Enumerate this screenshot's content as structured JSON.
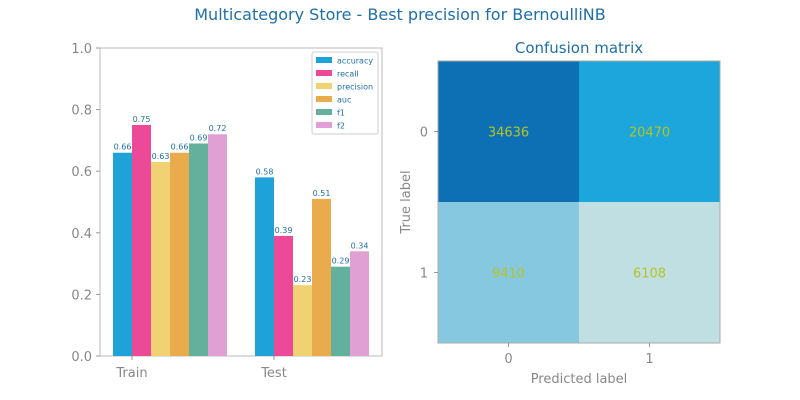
{
  "suptitle": "Multicategory Store - Best precision for BernoulliNB",
  "chart_data": [
    {
      "type": "bar",
      "categories": [
        "Train",
        "Test"
      ],
      "ylim": [
        0,
        1
      ],
      "yticks": [
        "0.0",
        "0.2",
        "0.4",
        "0.6",
        "0.8",
        "1.0"
      ],
      "legend_position": "top-right",
      "series": [
        {
          "name": "accuracy",
          "color": "#1ea2d8",
          "values": [
            0.66,
            0.58
          ],
          "labels": [
            "0.66",
            "0.58"
          ]
        },
        {
          "name": "recall",
          "color": "#ec4a98",
          "values": [
            0.75,
            0.39
          ],
          "labels": [
            "0.75",
            "0.39"
          ]
        },
        {
          "name": "precision",
          "color": "#f0d273",
          "values": [
            0.63,
            0.23
          ],
          "labels": [
            "0.63",
            "0.23"
          ]
        },
        {
          "name": "auc",
          "color": "#e9ab4c",
          "values": [
            0.66,
            0.51
          ],
          "labels": [
            "0.66",
            "0.51"
          ]
        },
        {
          "name": "f1",
          "color": "#63b09c",
          "values": [
            0.69,
            0.29
          ],
          "labels": [
            "0.69",
            "0.29"
          ]
        },
        {
          "name": "f2",
          "color": "#e0a0d4",
          "values": [
            0.72,
            0.34
          ],
          "labels": [
            "0.72",
            "0.34"
          ]
        }
      ]
    },
    {
      "type": "heatmap",
      "title": "Confusion matrix",
      "xlabel": "Predicted label",
      "ylabel": "True label",
      "x_ticks": [
        "0",
        "1"
      ],
      "y_ticks": [
        "0",
        "1"
      ],
      "matrix": [
        [
          34636,
          20470
        ],
        [
          9410,
          6108
        ]
      ],
      "cell_labels": [
        [
          "34636",
          "20470"
        ],
        [
          "9410",
          "6108"
        ]
      ],
      "cell_colors": [
        [
          "#0d70b4",
          "#1ca6dc"
        ],
        [
          "#86c8e0",
          "#bfdfe2"
        ]
      ],
      "value_text_color": "#b5c423"
    }
  ]
}
